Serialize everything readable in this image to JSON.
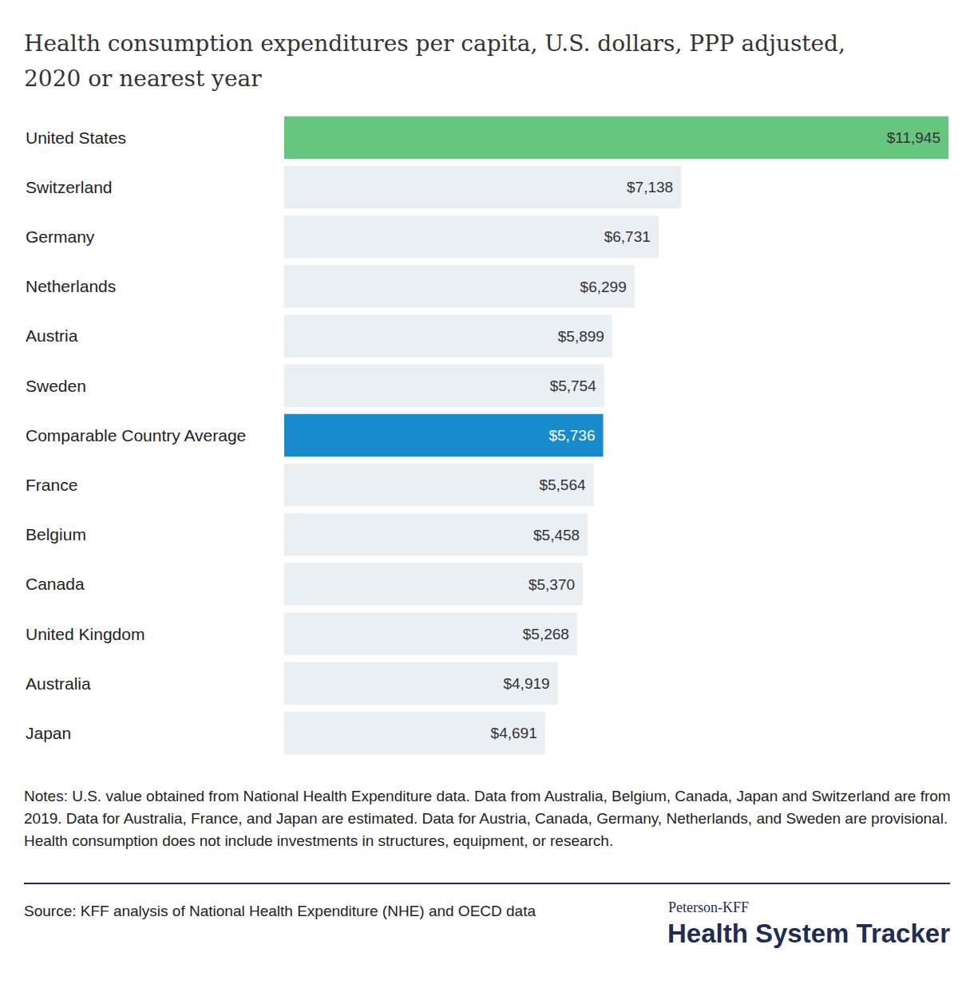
{
  "chart_data": {
    "type": "bar",
    "orientation": "horizontal",
    "title": "Health consumption expenditures per capita, U.S. dollars, PPP adjusted, 2020 or nearest year",
    "categories": [
      "United States",
      "Switzerland",
      "Germany",
      "Netherlands",
      "Austria",
      "Sweden",
      "Comparable Country Average",
      "France",
      "Belgium",
      "Canada",
      "United Kingdom",
      "Australia",
      "Japan"
    ],
    "values": [
      11945,
      7138,
      6731,
      6299,
      5899,
      5754,
      5736,
      5564,
      5458,
      5370,
      5268,
      4919,
      4691
    ],
    "value_labels": [
      "$11,945",
      "$7,138",
      "$6,731",
      "$6,299",
      "$5,899",
      "$5,754",
      "$5,736",
      "$5,564",
      "$5,458",
      "$5,370",
      "$5,268",
      "$4,919",
      "$4,691"
    ],
    "colors": [
      "#66c57e",
      "#e9eff2",
      "#e9eff2",
      "#e9eff2",
      "#e9eff2",
      "#e9eff2",
      "#178bcb",
      "#e9eff2",
      "#e9eff2",
      "#e9eff2",
      "#e9eff2",
      "#e9eff2",
      "#e9eff2"
    ],
    "data_labels": true,
    "tick_labels": false,
    "grid": false,
    "notes": "Notes: U.S. value obtained from National Health Expenditure data. Data from Australia, Belgium, Canada, Japan and Switzerland are from 2019. Data for Australia, France, and Japan are estimated. Data for Austria, Canada, Germany, Netherlands, and Sweden are provisional. Health consumption does not include investments in structures, equipment, or research.",
    "source": "Source: KFF analysis of National Health Expenditure (NHE) and OECD data",
    "branding": {
      "top": "Peterson-KFF",
      "name": "Health System Tracker"
    }
  }
}
